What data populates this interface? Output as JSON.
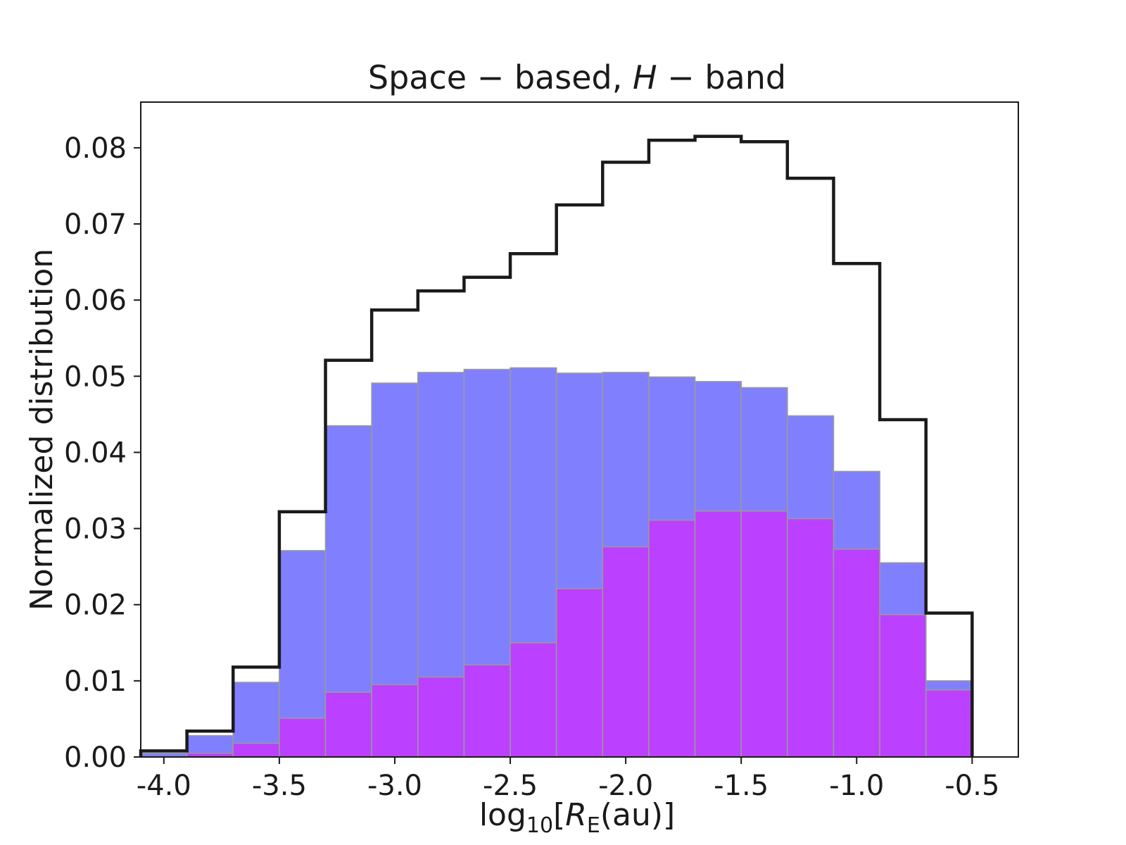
{
  "chart_data": {
    "type": "bar",
    "title": {
      "part1": "Space − based, ",
      "part2": "H",
      "part3": " − band"
    },
    "ylabel": "Normalized distribution",
    "xlabel": {
      "pre": "log",
      "sub": "10",
      "open": "[",
      "var": "R",
      "varsub": "E",
      "post": "(au)]"
    },
    "xlim": [
      -4.1,
      -0.3
    ],
    "ylim": [
      0.0,
      0.086
    ],
    "xticks": [
      -4.0,
      -3.5,
      -3.0,
      -2.5,
      -2.0,
      -1.5,
      -1.0,
      -0.5
    ],
    "xtick_labels": [
      "-4.0",
      "-3.5",
      "-3.0",
      "-2.5",
      "-2.0",
      "-1.5",
      "-1.0",
      "-0.5"
    ],
    "yticks": [
      0.0,
      0.01,
      0.02,
      0.03,
      0.04,
      0.05,
      0.06,
      0.07,
      0.08
    ],
    "ytick_labels": [
      "0.00",
      "0.01",
      "0.02",
      "0.03",
      "0.04",
      "0.05",
      "0.06",
      "0.07",
      "0.08"
    ],
    "bin_edges": [
      -4.1,
      -3.9,
      -3.7,
      -3.5,
      -3.3,
      -3.1,
      -2.9,
      -2.7,
      -2.5,
      -2.3,
      -2.1,
      -1.9,
      -1.7,
      -1.5,
      -1.3,
      -1.1,
      -0.9,
      -0.7,
      -0.5
    ],
    "series": [
      {
        "name": "blue histogram",
        "style": "filled",
        "color": "#8080ff",
        "values": [
          0.0005,
          0.0028,
          0.0098,
          0.0271,
          0.0435,
          0.0491,
          0.0505,
          0.0509,
          0.0511,
          0.0504,
          0.0505,
          0.0499,
          0.0493,
          0.0485,
          0.0448,
          0.0375,
          0.0255,
          0.01
        ]
      },
      {
        "name": "purple histogram",
        "style": "filled",
        "color": "#bb40ff",
        "values": [
          0.0,
          0.0005,
          0.0018,
          0.0051,
          0.0085,
          0.0095,
          0.0105,
          0.0121,
          0.015,
          0.0221,
          0.0276,
          0.0311,
          0.0323,
          0.0323,
          0.0313,
          0.0273,
          0.0187,
          0.0088
        ]
      },
      {
        "name": "black step histogram",
        "style": "step",
        "color": "#1a1a1a",
        "values": [
          0.0008,
          0.0034,
          0.0118,
          0.0322,
          0.0521,
          0.0587,
          0.0612,
          0.063,
          0.0661,
          0.0725,
          0.0781,
          0.081,
          0.0815,
          0.0808,
          0.076,
          0.0648,
          0.0443,
          0.0189
        ]
      }
    ]
  }
}
